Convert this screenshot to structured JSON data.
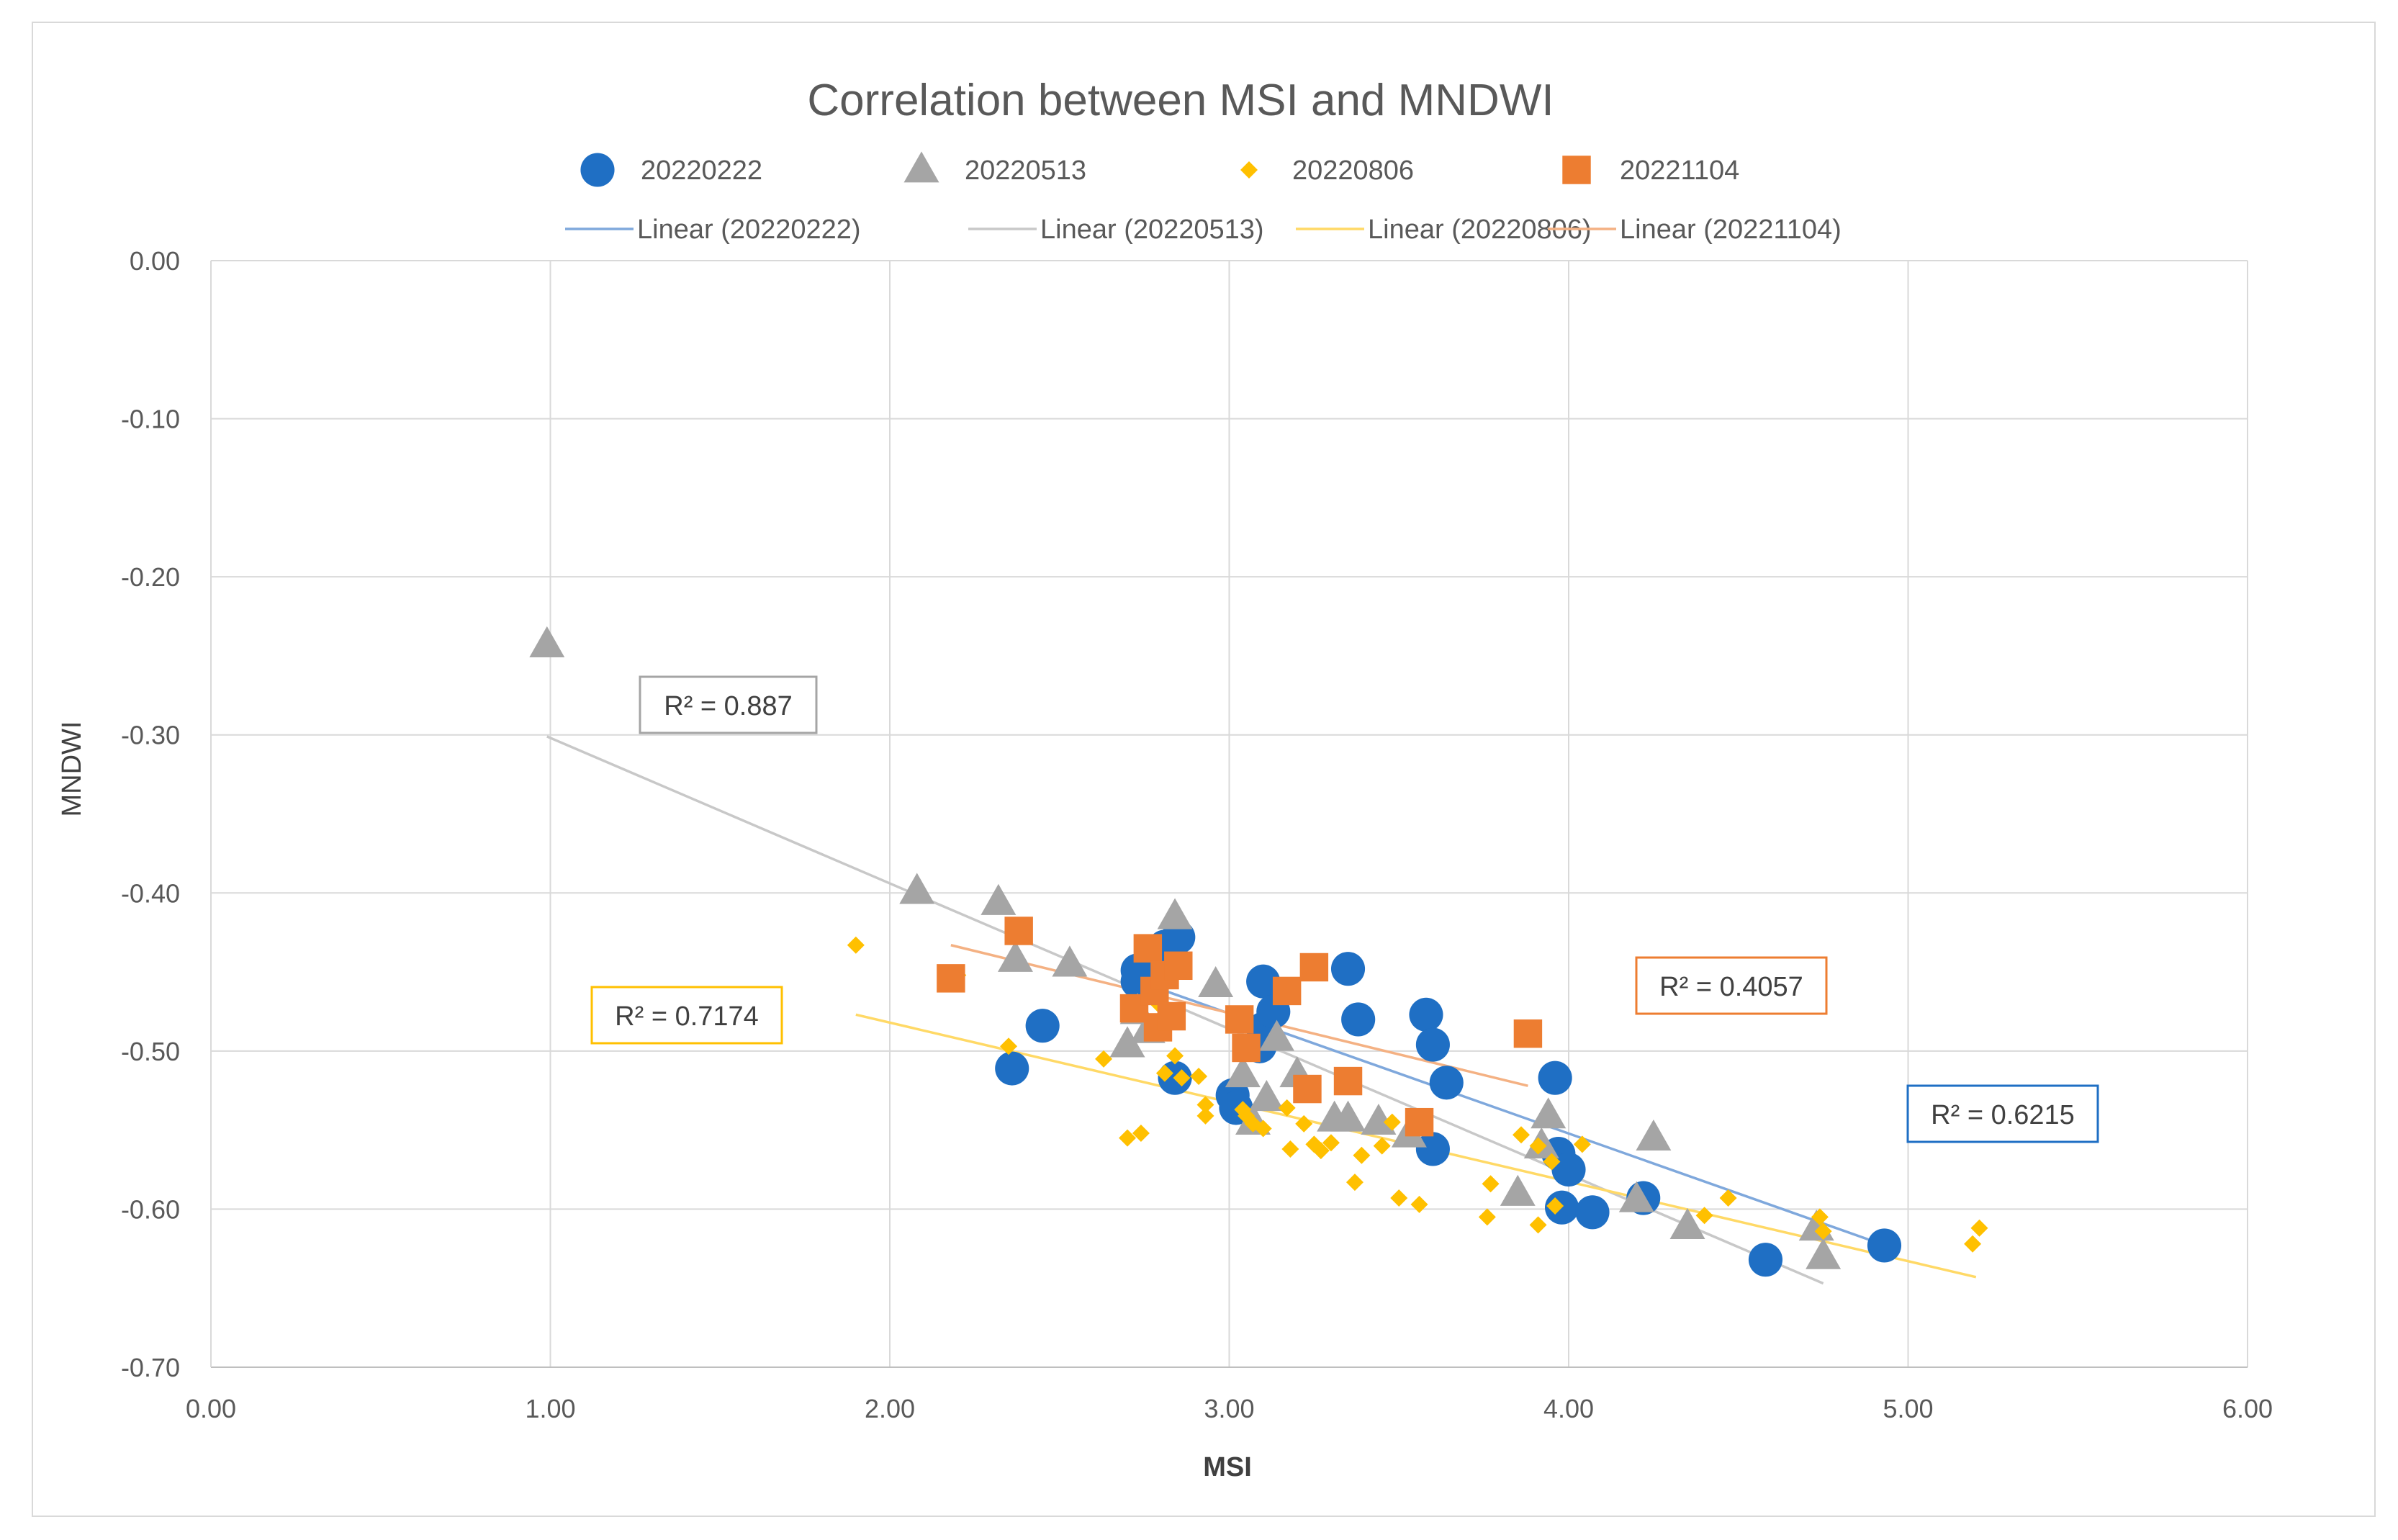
{
  "chart_data": {
    "type": "scatter",
    "title": "Correlation between MSI and MNDWI",
    "xlabel": "MSI",
    "ylabel": "MNDWI",
    "xlim": [
      0,
      6
    ],
    "ylim": [
      -0.7,
      0
    ],
    "x_ticks": [
      "0.00",
      "1.00",
      "2.00",
      "3.00",
      "4.00",
      "5.00",
      "6.00"
    ],
    "y_ticks": [
      "0.00",
      "-0.10",
      "-0.20",
      "-0.30",
      "-0.40",
      "-0.50",
      "-0.60",
      "-0.70"
    ],
    "grid": true,
    "legend_position": "top",
    "series": [
      {
        "name": "20220222",
        "marker": "circle",
        "color": "#1f6fc4",
        "trend_label": "Linear (20220222)",
        "trend_color": "#7fa8dc",
        "r2_label": "R² = 0.6215",
        "trend": [
          [
            2.72,
            -0.455
          ],
          [
            4.92,
            -0.622
          ]
        ],
        "points": [
          [
            2.36,
            -0.511
          ],
          [
            2.45,
            -0.484
          ],
          [
            2.73,
            -0.449
          ],
          [
            2.73,
            -0.456
          ],
          [
            2.81,
            -0.434
          ],
          [
            2.85,
            -0.428
          ],
          [
            2.84,
            -0.517
          ],
          [
            3.01,
            -0.528
          ],
          [
            3.02,
            -0.536
          ],
          [
            3.09,
            -0.497
          ],
          [
            3.1,
            -0.486
          ],
          [
            3.1,
            -0.456
          ],
          [
            3.13,
            -0.475
          ],
          [
            3.35,
            -0.448
          ],
          [
            3.38,
            -0.48
          ],
          [
            3.58,
            -0.477
          ],
          [
            3.6,
            -0.496
          ],
          [
            3.64,
            -0.52
          ],
          [
            3.6,
            -0.562
          ],
          [
            3.96,
            -0.517
          ],
          [
            3.97,
            -0.565
          ],
          [
            4.0,
            -0.575
          ],
          [
            3.98,
            -0.599
          ],
          [
            4.07,
            -0.602
          ],
          [
            4.22,
            -0.593
          ],
          [
            4.58,
            -0.632
          ],
          [
            4.93,
            -0.623
          ]
        ]
      },
      {
        "name": "20220513",
        "marker": "triangle",
        "color": "#a5a5a5",
        "trend_label": "Linear (20220513)",
        "trend_color": "#c8c8c8",
        "r2_label": "R² = 0.887",
        "trend": [
          [
            0.99,
            -0.301
          ],
          [
            4.75,
            -0.647
          ]
        ],
        "points": [
          [
            0.99,
            -0.243
          ],
          [
            2.08,
            -0.399
          ],
          [
            2.32,
            -0.406
          ],
          [
            2.37,
            -0.442
          ],
          [
            2.53,
            -0.445
          ],
          [
            2.7,
            -0.496
          ],
          [
            2.73,
            -0.475
          ],
          [
            2.76,
            -0.487
          ],
          [
            2.84,
            -0.415
          ],
          [
            2.96,
            -0.458
          ],
          [
            3.04,
            -0.515
          ],
          [
            3.07,
            -0.545
          ],
          [
            3.11,
            -0.53
          ],
          [
            3.14,
            -0.492
          ],
          [
            3.2,
            -0.515
          ],
          [
            3.31,
            -0.543
          ],
          [
            3.35,
            -0.543
          ],
          [
            3.44,
            -0.545
          ],
          [
            3.53,
            -0.553
          ],
          [
            3.85,
            -0.59
          ],
          [
            3.92,
            -0.56
          ],
          [
            3.94,
            -0.541
          ],
          [
            4.2,
            -0.594
          ],
          [
            4.25,
            -0.555
          ],
          [
            4.35,
            -0.611
          ],
          [
            4.73,
            -0.612
          ],
          [
            4.75,
            -0.63
          ]
        ]
      },
      {
        "name": "20220806",
        "marker": "diamond",
        "color": "#ffc000",
        "trend_label": "Linear (20220806)",
        "trend_color": "#ffd966",
        "r2_label": "R² = 0.7174",
        "trend": [
          [
            1.9,
            -0.477
          ],
          [
            5.2,
            -0.643
          ]
        ],
        "points": [
          [
            1.9,
            -0.433
          ],
          [
            2.2,
            -0.452
          ],
          [
            2.35,
            -0.497
          ],
          [
            2.63,
            -0.505
          ],
          [
            2.7,
            -0.555
          ],
          [
            2.74,
            -0.552
          ],
          [
            2.79,
            -0.47
          ],
          [
            2.81,
            -0.514
          ],
          [
            2.84,
            -0.503
          ],
          [
            2.86,
            -0.517
          ],
          [
            2.91,
            -0.516
          ],
          [
            2.93,
            -0.534
          ],
          [
            2.93,
            -0.541
          ],
          [
            3.04,
            -0.537
          ],
          [
            3.05,
            -0.541
          ],
          [
            3.07,
            -0.546
          ],
          [
            3.1,
            -0.549
          ],
          [
            3.17,
            -0.536
          ],
          [
            3.18,
            -0.562
          ],
          [
            3.22,
            -0.546
          ],
          [
            3.25,
            -0.559
          ],
          [
            3.27,
            -0.563
          ],
          [
            3.3,
            -0.558
          ],
          [
            3.37,
            -0.583
          ],
          [
            3.39,
            -0.566
          ],
          [
            3.45,
            -0.56
          ],
          [
            3.48,
            -0.545
          ],
          [
            3.5,
            -0.593
          ],
          [
            3.56,
            -0.597
          ],
          [
            3.76,
            -0.605
          ],
          [
            3.77,
            -0.584
          ],
          [
            3.86,
            -0.553
          ],
          [
            3.91,
            -0.56
          ],
          [
            3.91,
            -0.61
          ],
          [
            3.95,
            -0.57
          ],
          [
            3.96,
            -0.598
          ],
          [
            4.04,
            -0.559
          ],
          [
            4.4,
            -0.604
          ],
          [
            4.47,
            -0.593
          ],
          [
            4.74,
            -0.605
          ],
          [
            4.75,
            -0.614
          ],
          [
            5.19,
            -0.622
          ],
          [
            5.21,
            -0.612
          ]
        ]
      },
      {
        "name": "20221104",
        "marker": "square",
        "color": "#ed7d31",
        "trend_label": "Linear (20221104)",
        "trend_color": "#f4b183",
        "r2_label": "R² = 0.4057",
        "trend": [
          [
            2.18,
            -0.433
          ],
          [
            3.88,
            -0.522
          ]
        ],
        "points": [
          [
            2.18,
            -0.454
          ],
          [
            2.38,
            -0.424
          ],
          [
            2.72,
            -0.473
          ],
          [
            2.76,
            -0.435
          ],
          [
            2.78,
            -0.462
          ],
          [
            2.79,
            -0.485
          ],
          [
            2.81,
            -0.452
          ],
          [
            2.83,
            -0.478
          ],
          [
            2.85,
            -0.446
          ],
          [
            3.03,
            -0.48
          ],
          [
            3.05,
            -0.498
          ],
          [
            3.17,
            -0.462
          ],
          [
            3.23,
            -0.524
          ],
          [
            3.25,
            -0.447
          ],
          [
            3.35,
            -0.519
          ],
          [
            3.56,
            -0.545
          ],
          [
            3.88,
            -0.489
          ]
        ]
      }
    ]
  }
}
